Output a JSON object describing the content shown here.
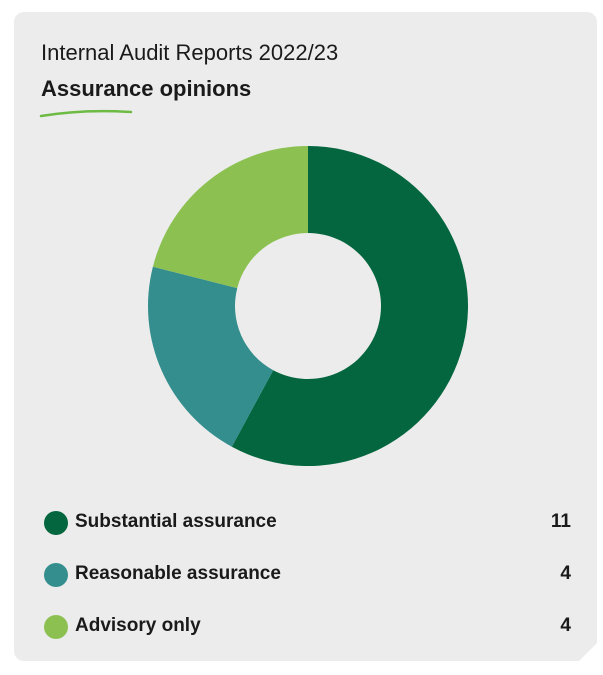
{
  "header": {
    "subtitle": "Internal Audit Reports 2022/23",
    "title": "Assurance opinions"
  },
  "colors": {
    "card_background": "#ececec",
    "underline": "#6dbb45"
  },
  "chart_data": {
    "type": "pie",
    "style": "donut",
    "categories": [
      "Substantial assurance",
      "Reasonable assurance",
      "Advisory only"
    ],
    "values": [
      11,
      4,
      4
    ],
    "colors": [
      "#03663f",
      "#338e8d",
      "#8cc152"
    ],
    "legend_position": "bottom"
  }
}
